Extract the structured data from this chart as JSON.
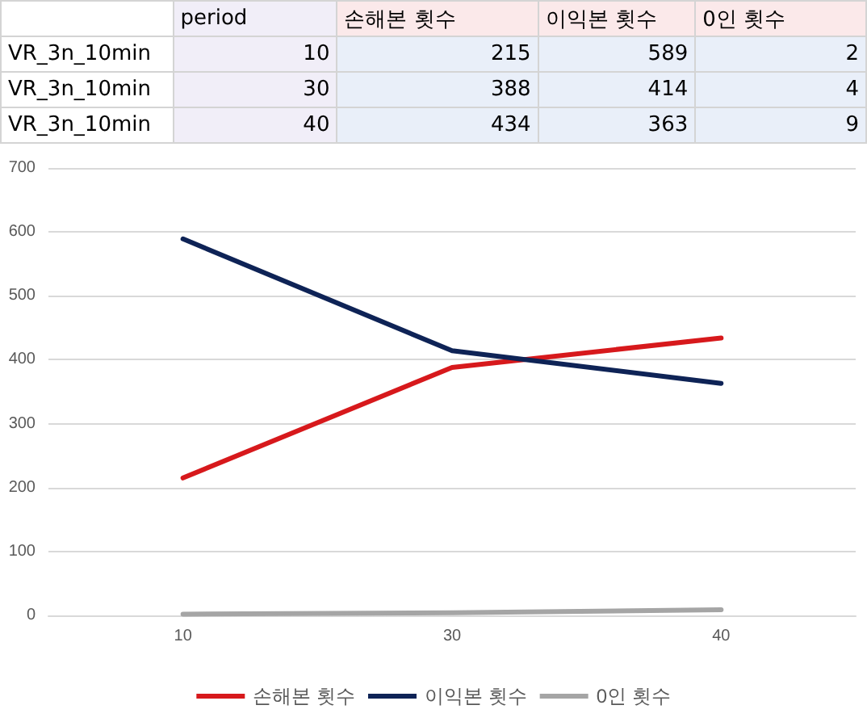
{
  "chart_data": {
    "type": "line",
    "categories": [
      "10",
      "30",
      "40"
    ],
    "series": [
      {
        "name": "손해본 횟수",
        "color": "#d7191c",
        "values": [
          215,
          388,
          434
        ]
      },
      {
        "name": "이익본 횟수",
        "color": "#0e2356",
        "values": [
          589,
          414,
          363
        ]
      },
      {
        "name": "0인 횟수",
        "color": "#a5a5a5",
        "values": [
          2,
          4,
          9
        ]
      }
    ],
    "annotations": [
      "period",
      "손해본 횟수",
      "이익본 횟수",
      "0인 횟수",
      "VR_3n_10min",
      "10",
      "215",
      "589",
      "2",
      "VR_3n_10min",
      "30",
      "388",
      "414",
      "4",
      "VR_3n_10min",
      "40",
      "434",
      "363",
      "9"
    ],
    "ylim": [
      0,
      700
    ],
    "yticks": [
      0,
      100,
      200,
      300,
      400,
      500,
      600,
      700
    ],
    "grid": "y",
    "legend": "bottom",
    "marker": "none",
    "line_style": "solid"
  }
}
